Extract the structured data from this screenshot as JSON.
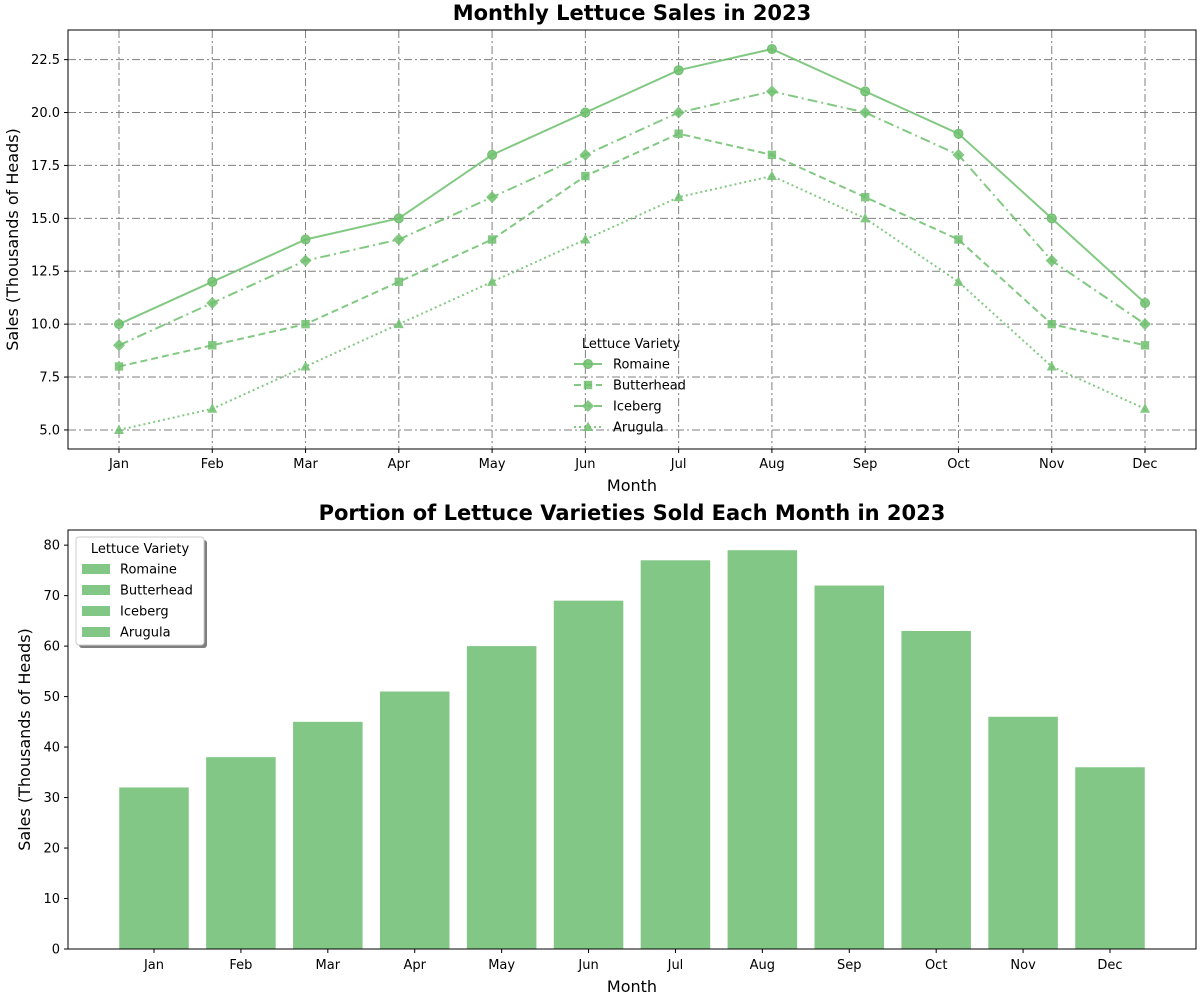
{
  "chart_data": [
    {
      "type": "line",
      "title": "Monthly Lettuce Sales in 2023",
      "xlabel": "Month",
      "ylabel": "Sales (Thousands of Heads)",
      "categories": [
        "Jan",
        "Feb",
        "Mar",
        "Apr",
        "May",
        "Jun",
        "Jul",
        "Aug",
        "Sep",
        "Oct",
        "Nov",
        "Dec"
      ],
      "ylim": [
        4.1,
        23.9
      ],
      "yticks": [
        "5.0",
        "7.5",
        "10.0",
        "12.5",
        "15.0",
        "17.5",
        "20.0",
        "22.5"
      ],
      "grid": true,
      "legend": {
        "title": "Lettuce Variety",
        "placement": "lower-center"
      },
      "color": "#6dbf6d",
      "series": [
        {
          "name": "Romaine",
          "marker": "circle",
          "line_style": "solid",
          "values": [
            10,
            12,
            14,
            15,
            18,
            20,
            22,
            23,
            21,
            19,
            15,
            11
          ]
        },
        {
          "name": "Butterhead",
          "marker": "square",
          "line_style": "dashed",
          "values": [
            8,
            9,
            10,
            12,
            14,
            17,
            19,
            18,
            16,
            14,
            10,
            9
          ]
        },
        {
          "name": "Iceberg",
          "marker": "diamond",
          "line_style": "dashdot",
          "values": [
            9,
            11,
            13,
            14,
            16,
            18,
            20,
            21,
            20,
            18,
            13,
            10
          ]
        },
        {
          "name": "Arugula",
          "marker": "triangle",
          "line_style": "dotted",
          "values": [
            5,
            6,
            8,
            10,
            12,
            14,
            16,
            17,
            15,
            12,
            8,
            6
          ]
        }
      ]
    },
    {
      "type": "bar",
      "title": "Portion of Lettuce Varieties Sold Each Month in 2023",
      "xlabel": "Month",
      "ylabel": "Sales (Thousands of Heads)",
      "categories": [
        "Jan",
        "Feb",
        "Mar",
        "Apr",
        "May",
        "Jun",
        "Jul",
        "Aug",
        "Sep",
        "Oct",
        "Nov",
        "Dec"
      ],
      "ylim": [
        0,
        83
      ],
      "yticks": [
        "0",
        "10",
        "20",
        "30",
        "40",
        "50",
        "60",
        "70",
        "80"
      ],
      "grid": false,
      "legend": {
        "title": "Lettuce Variety",
        "placement": "upper-left",
        "items": [
          "Romaine",
          "Butterhead",
          "Iceberg",
          "Arugula"
        ]
      },
      "color": "#82c785",
      "values": [
        32,
        38,
        45,
        51,
        60,
        69,
        77,
        79,
        72,
        63,
        46,
        36
      ]
    }
  ]
}
